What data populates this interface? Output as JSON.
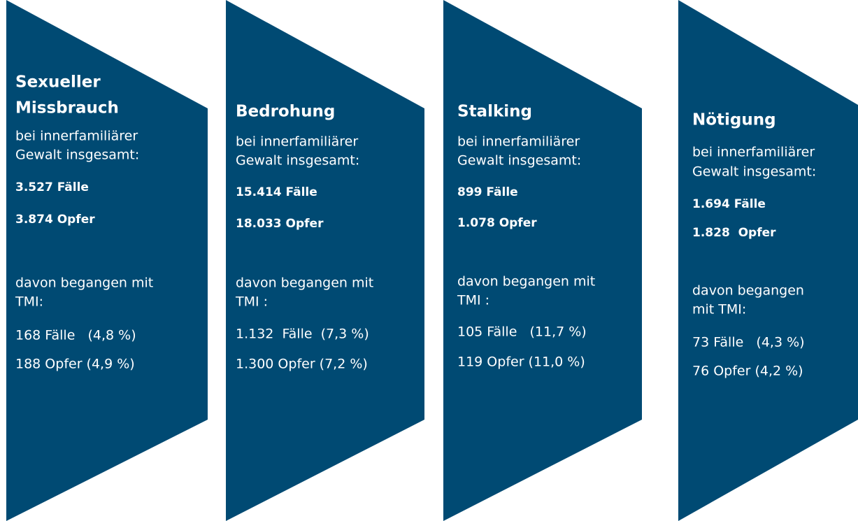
{
  "panels": [
    {
      "title": [
        "Sexueller",
        "Missbrauch"
      ],
      "intro": [
        "bei innerfamiliärer",
        "Gewalt insgesamt:"
      ],
      "totals": [
        "3.527 Fälle",
        "3.874 Opfer"
      ],
      "subset": [
        "davon begangen mit",
        "TMI:"
      ],
      "shares": [
        "168 Fälle   (4,8 %)",
        "188 Opfer (4,9 %)"
      ]
    },
    {
      "title": [
        "Bedrohung"
      ],
      "intro": [
        "bei innerfamiliärer",
        "Gewalt insgesamt:"
      ],
      "totals": [
        "15.414 Fälle",
        "18.033 Opfer"
      ],
      "subset": [
        "davon begangen mit",
        "TMI :"
      ],
      "shares": [
        "1.132  Fälle  (7,3 %)",
        "1.300 Opfer (7,2 %)"
      ]
    },
    {
      "title": [
        "Stalking"
      ],
      "intro": [
        "bei innerfamiliärer",
        "Gewalt insgesamt:"
      ],
      "totals": [
        "899 Fälle",
        "1.078 Opfer"
      ],
      "subset": [
        "davon begangen mit",
        "TMI :"
      ],
      "shares": [
        "105 Fälle   (11,7 %)",
        "119 Opfer (11,0 %)"
      ]
    },
    {
      "title": [
        "Nötigung"
      ],
      "intro": [
        "bei innerfamiliärer",
        "Gewalt insgesamt:"
      ],
      "totals": [
        "1.694 Fälle",
        "1.828  Opfer"
      ],
      "subset": [
        "davon begangen",
        "mit TMI:"
      ],
      "shares": [
        "73 Fälle   (4,3 %)",
        "76 Opfer (4,2 %)"
      ]
    }
  ]
}
